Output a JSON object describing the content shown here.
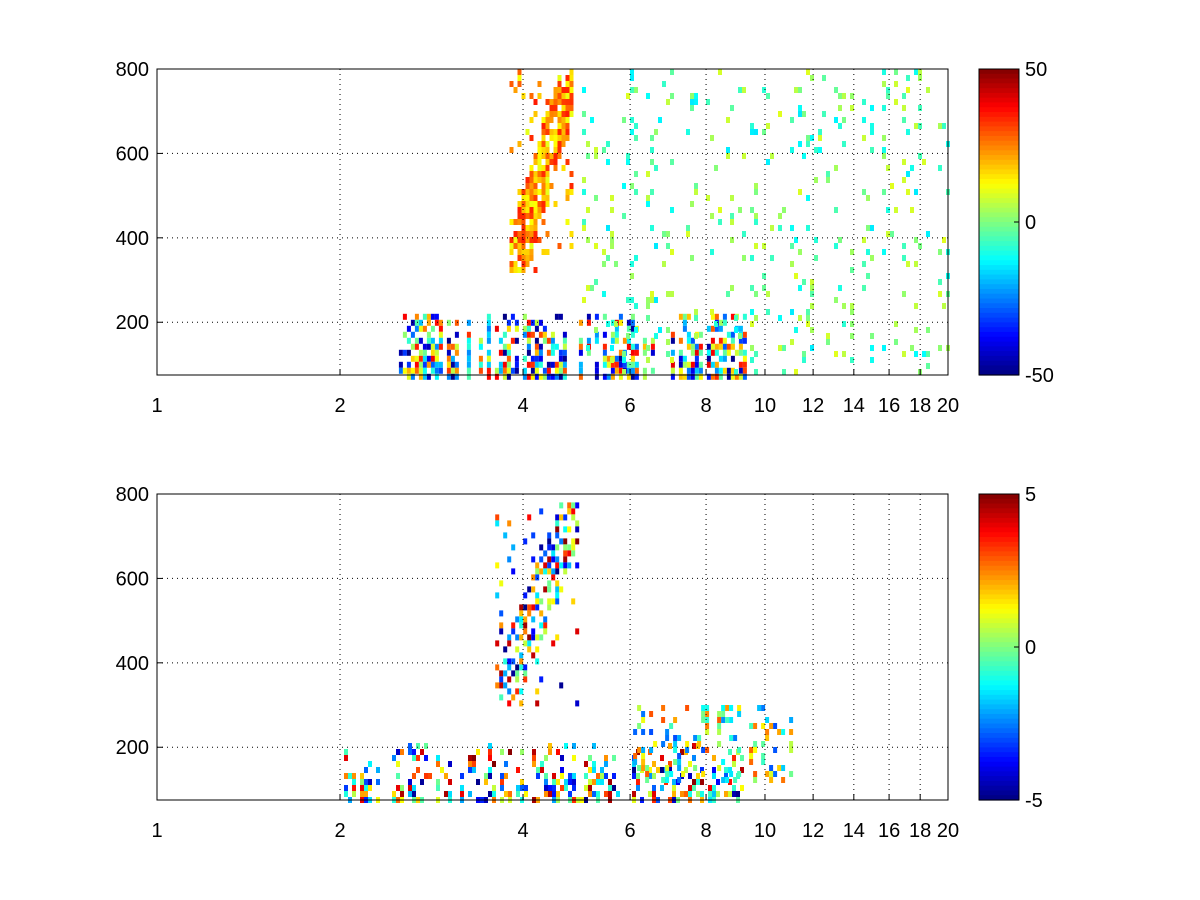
{
  "chart_data": [
    {
      "type": "heatmap",
      "title": "",
      "xlabel": "",
      "ylabel": "",
      "xlim": [
        1,
        20
      ],
      "ylim": [
        75,
        800
      ],
      "x_scale": "log",
      "x_ticks": [
        1,
        2,
        4,
        6,
        8,
        10,
        12,
        14,
        16,
        18,
        20
      ],
      "x_tick_labels": [
        "1",
        "2",
        "4",
        "6",
        "8",
        "10",
        "12",
        "14",
        "16",
        "18",
        "20"
      ],
      "y_ticks": [
        200,
        400,
        600,
        800
      ],
      "y_tick_labels": [
        "200",
        "400",
        "600",
        "800"
      ],
      "grid": true,
      "colormap": "jet",
      "clim": [
        -50,
        50
      ],
      "colorbar": {
        "ticks": [
          -50,
          0,
          50
        ],
        "tick_labels": [
          "-50",
          "0",
          "50"
        ],
        "placement": "right"
      },
      "approximate_features": [
        {
          "description": "dense strong band",
          "x_range": [
            2.5,
            9.2
          ],
          "y_range": [
            75,
            220
          ],
          "value_range": [
            -50,
            40
          ]
        },
        {
          "description": "diagonal ridge",
          "x_range": [
            3.8,
            4.8
          ],
          "y_range": [
            320,
            800
          ],
          "value_range": [
            10,
            35
          ]
        },
        {
          "description": "sparse weak values",
          "x_range": [
            5,
            20
          ],
          "y_range": [
            75,
            800
          ],
          "value_range": [
            -15,
            10
          ]
        }
      ]
    },
    {
      "type": "heatmap",
      "title": "",
      "xlabel": "",
      "ylabel": "",
      "xlim": [
        1,
        20
      ],
      "ylim": [
        75,
        800
      ],
      "x_scale": "log",
      "x_ticks": [
        1,
        2,
        4,
        6,
        8,
        10,
        12,
        14,
        16,
        18,
        20
      ],
      "x_tick_labels": [
        "1",
        "2",
        "4",
        "6",
        "8",
        "10",
        "12",
        "14",
        "16",
        "18",
        "20"
      ],
      "y_ticks": [
        200,
        400,
        600,
        800
      ],
      "y_tick_labels": [
        "200",
        "400",
        "600",
        "800"
      ],
      "grid": true,
      "colormap": "jet",
      "clim": [
        -5,
        5
      ],
      "colorbar": {
        "ticks": [
          -5,
          0,
          5
        ],
        "tick_labels": [
          "-5",
          "0",
          "5"
        ],
        "placement": "right"
      },
      "approximate_features": [
        {
          "description": "low band",
          "x_range": [
            2,
            9.2
          ],
          "y_range": [
            75,
            210
          ],
          "value_range": [
            -5,
            5
          ]
        },
        {
          "description": "ridge",
          "x_range": [
            3.6,
            4.9
          ],
          "y_range": [
            300,
            780
          ],
          "value_range": [
            -5,
            5
          ]
        },
        {
          "description": "patches",
          "x_range": [
            5.8,
            11
          ],
          "y_range": [
            120,
            300
          ],
          "value_range": [
            -3,
            3
          ]
        }
      ]
    }
  ]
}
